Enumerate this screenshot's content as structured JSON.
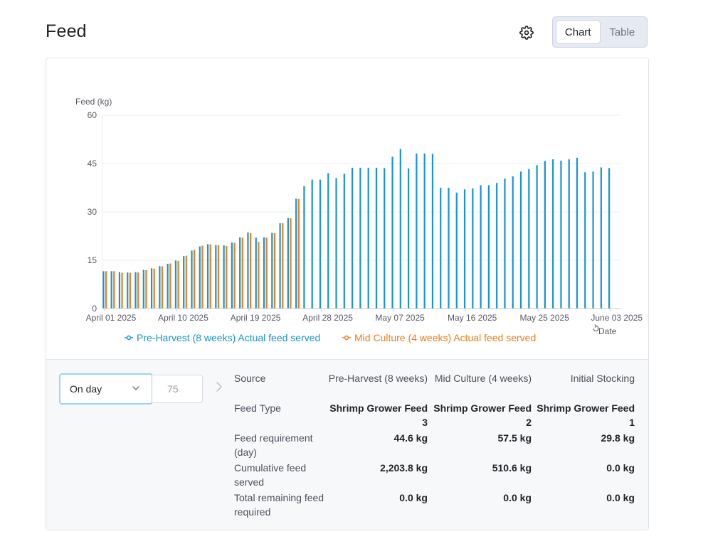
{
  "header": {
    "title": "Feed"
  },
  "icons": {
    "settings": "gear-icon",
    "next": "chevron-right-icon",
    "dropdown": "chevron-down-icon",
    "date_reset": "rotate-icon"
  },
  "toggle": {
    "chart_label": "Chart",
    "table_label": "Table",
    "active": "Chart"
  },
  "colors": {
    "pre_harvest": "#1595d3",
    "mid_culture": "#f07d1a",
    "grid": "#e9ecef"
  },
  "chart_data": {
    "type": "bar",
    "ylabel": "Feed (kg)",
    "ylim": [
      0,
      60
    ],
    "yticks": [
      "0",
      "15",
      "30",
      "45",
      "60"
    ],
    "x_labels": [
      "April 01 2025",
      "April 10 2025",
      "April 19 2025",
      "April 28 2025",
      "May 07 2025",
      "May 16 2025",
      "May 25 2025",
      "June 03 2025"
    ],
    "date_label": "Date",
    "start_day": 0,
    "series": [
      {
        "name": "Pre-Harvest (8 weeks) Actual feed served",
        "color": "#1595d3",
        "start_day": 0,
        "values": [
          11.6,
          11.6,
          11.3,
          11.2,
          11.3,
          12.0,
          12.5,
          13.2,
          13.9,
          14.9,
          16.3,
          18.0,
          19.3,
          20.0,
          19.7,
          19.6,
          20.5,
          22.1,
          23.6,
          22.0,
          22.1,
          23.5,
          26.5,
          28.1,
          34.1,
          38.0,
          40.0,
          40.0,
          42.0,
          40.5,
          41.8,
          43.7,
          43.7,
          43.7,
          43.7,
          43.6,
          47.1,
          49.5,
          43.5,
          48.1,
          48.1,
          48.0,
          37.5,
          37.5,
          36.0,
          37.0,
          37.3,
          38.3,
          38.3,
          39.0,
          40.3,
          41.0,
          42.5,
          43.3,
          44.5,
          45.8,
          46.3,
          45.9,
          46.3,
          46.8,
          42.3,
          42.5,
          43.8,
          43.6
        ]
      },
      {
        "name": "Mid Culture (4 weeks) Actual feed served",
        "color": "#f07d1a",
        "start_day": 0,
        "values": [
          11.6,
          11.6,
          11.1,
          11.1,
          11.2,
          11.9,
          12.4,
          13.1,
          14.0,
          14.8,
          16.4,
          18.2,
          19.5,
          19.9,
          19.7,
          19.4,
          20.4,
          22.0,
          23.4,
          20.7,
          22.0,
          23.4,
          26.5,
          28.0,
          34.0
        ]
      }
    ]
  },
  "controls": {
    "mode_select": "On day",
    "day_value": "75"
  },
  "details": {
    "columns": [
      "Pre-Harvest (8 weeks)",
      "Mid Culture (4 weeks)",
      "Initial Stocking"
    ],
    "rows": [
      {
        "label": "Source",
        "values": [
          "Pre-Harvest (8 weeks)",
          "Mid Culture (4 weeks)",
          "Initial Stocking"
        ],
        "bold": false
      },
      {
        "label": "Feed Type",
        "values": [
          "Shrimp Grower Feed 3",
          "Shrimp Grower Feed 2",
          "Shrimp Grower Feed 1"
        ],
        "bold": true
      },
      {
        "label": "Feed requirement (day)",
        "values": [
          "44.6 kg",
          "57.5 kg",
          "29.8 kg"
        ],
        "bold": true
      },
      {
        "label": "Cumulative feed served",
        "values": [
          "2,203.8 kg",
          "510.6 kg",
          "0.0 kg"
        ],
        "bold": true
      },
      {
        "label": "Total remaining feed required",
        "values": [
          "0.0 kg",
          "0.0 kg",
          "0.0 kg"
        ],
        "bold": true
      }
    ]
  }
}
